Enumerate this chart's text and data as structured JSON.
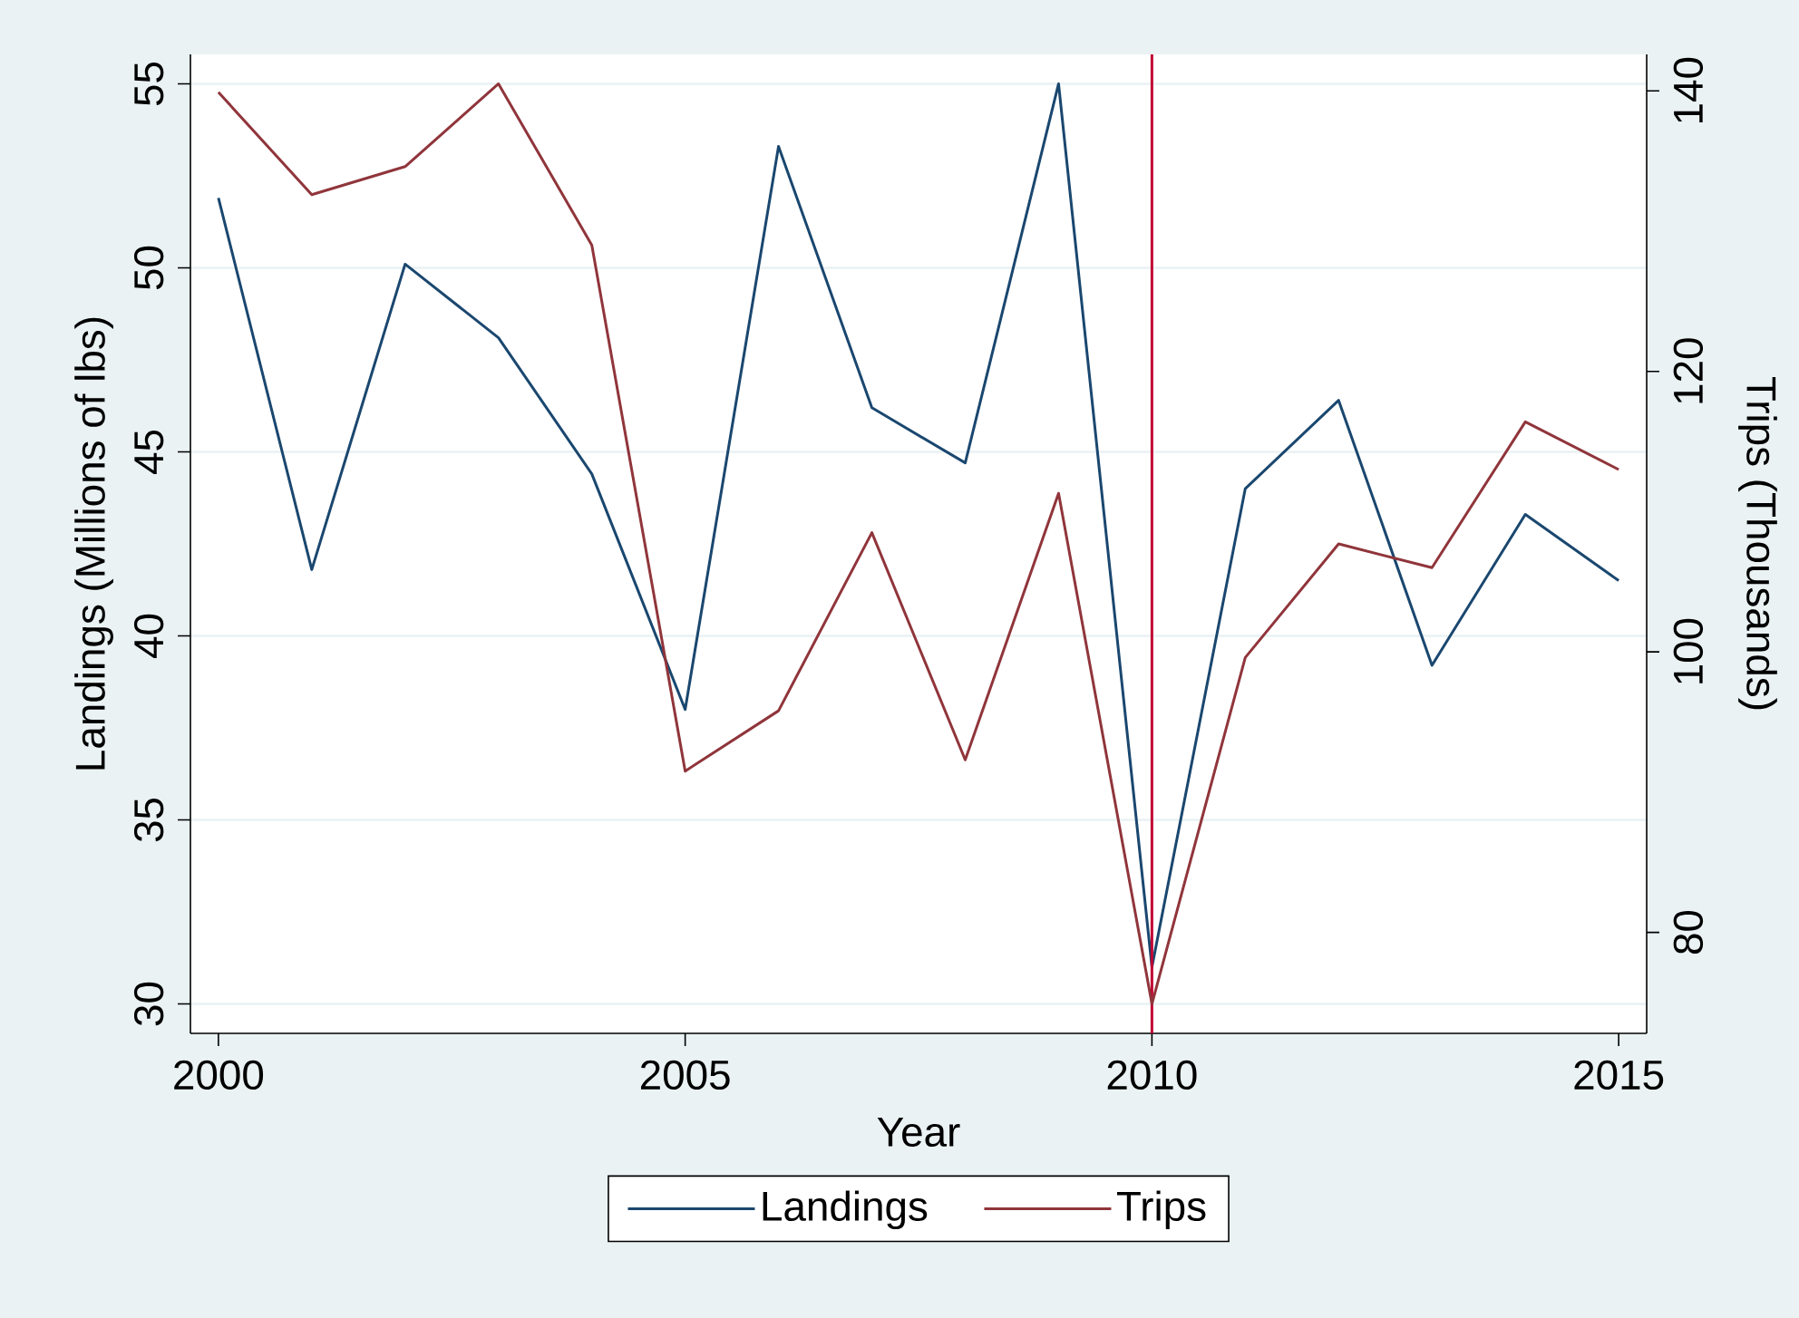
{
  "chart_data": {
    "type": "line",
    "xlabel": "Year",
    "ylabel": "Landings (Millions of lbs)",
    "y2label": "Trips (Thousands)",
    "x": [
      2000,
      2001,
      2002,
      2003,
      2004,
      2005,
      2006,
      2007,
      2008,
      2009,
      2010,
      2011,
      2012,
      2013,
      2014,
      2015
    ],
    "xlim": [
      1999.7,
      2015.3
    ],
    "xticks": [
      2000,
      2005,
      2010,
      2015
    ],
    "ylim": [
      29.2,
      55.8
    ],
    "yticks": [
      30,
      35,
      40,
      45,
      50,
      55
    ],
    "y2lim": [
      72.8,
      142.6
    ],
    "y2ticks": [
      80,
      100,
      120,
      140
    ],
    "series": [
      {
        "name": "Landings",
        "color": "#1a476f",
        "values": [
          51.9,
          41.8,
          50.1,
          48.1,
          44.4,
          38.0,
          53.3,
          46.2,
          44.7,
          55.0,
          31.0,
          44.0,
          46.4,
          39.2,
          43.3,
          41.5
        ]
      },
      {
        "name": "Trips",
        "color": "#90353b",
        "axis": "y2",
        "values": [
          139.9,
          132.6,
          134.6,
          140.5,
          129.0,
          91.5,
          95.8,
          108.5,
          92.3,
          111.3,
          74.9,
          99.6,
          107.7,
          106.0,
          116.4,
          113.0
        ]
      }
    ],
    "ref_lines": [
      {
        "axis": "x",
        "value": 2010,
        "color": "#c10534"
      }
    ],
    "grid": "y",
    "legend": "bottom"
  }
}
